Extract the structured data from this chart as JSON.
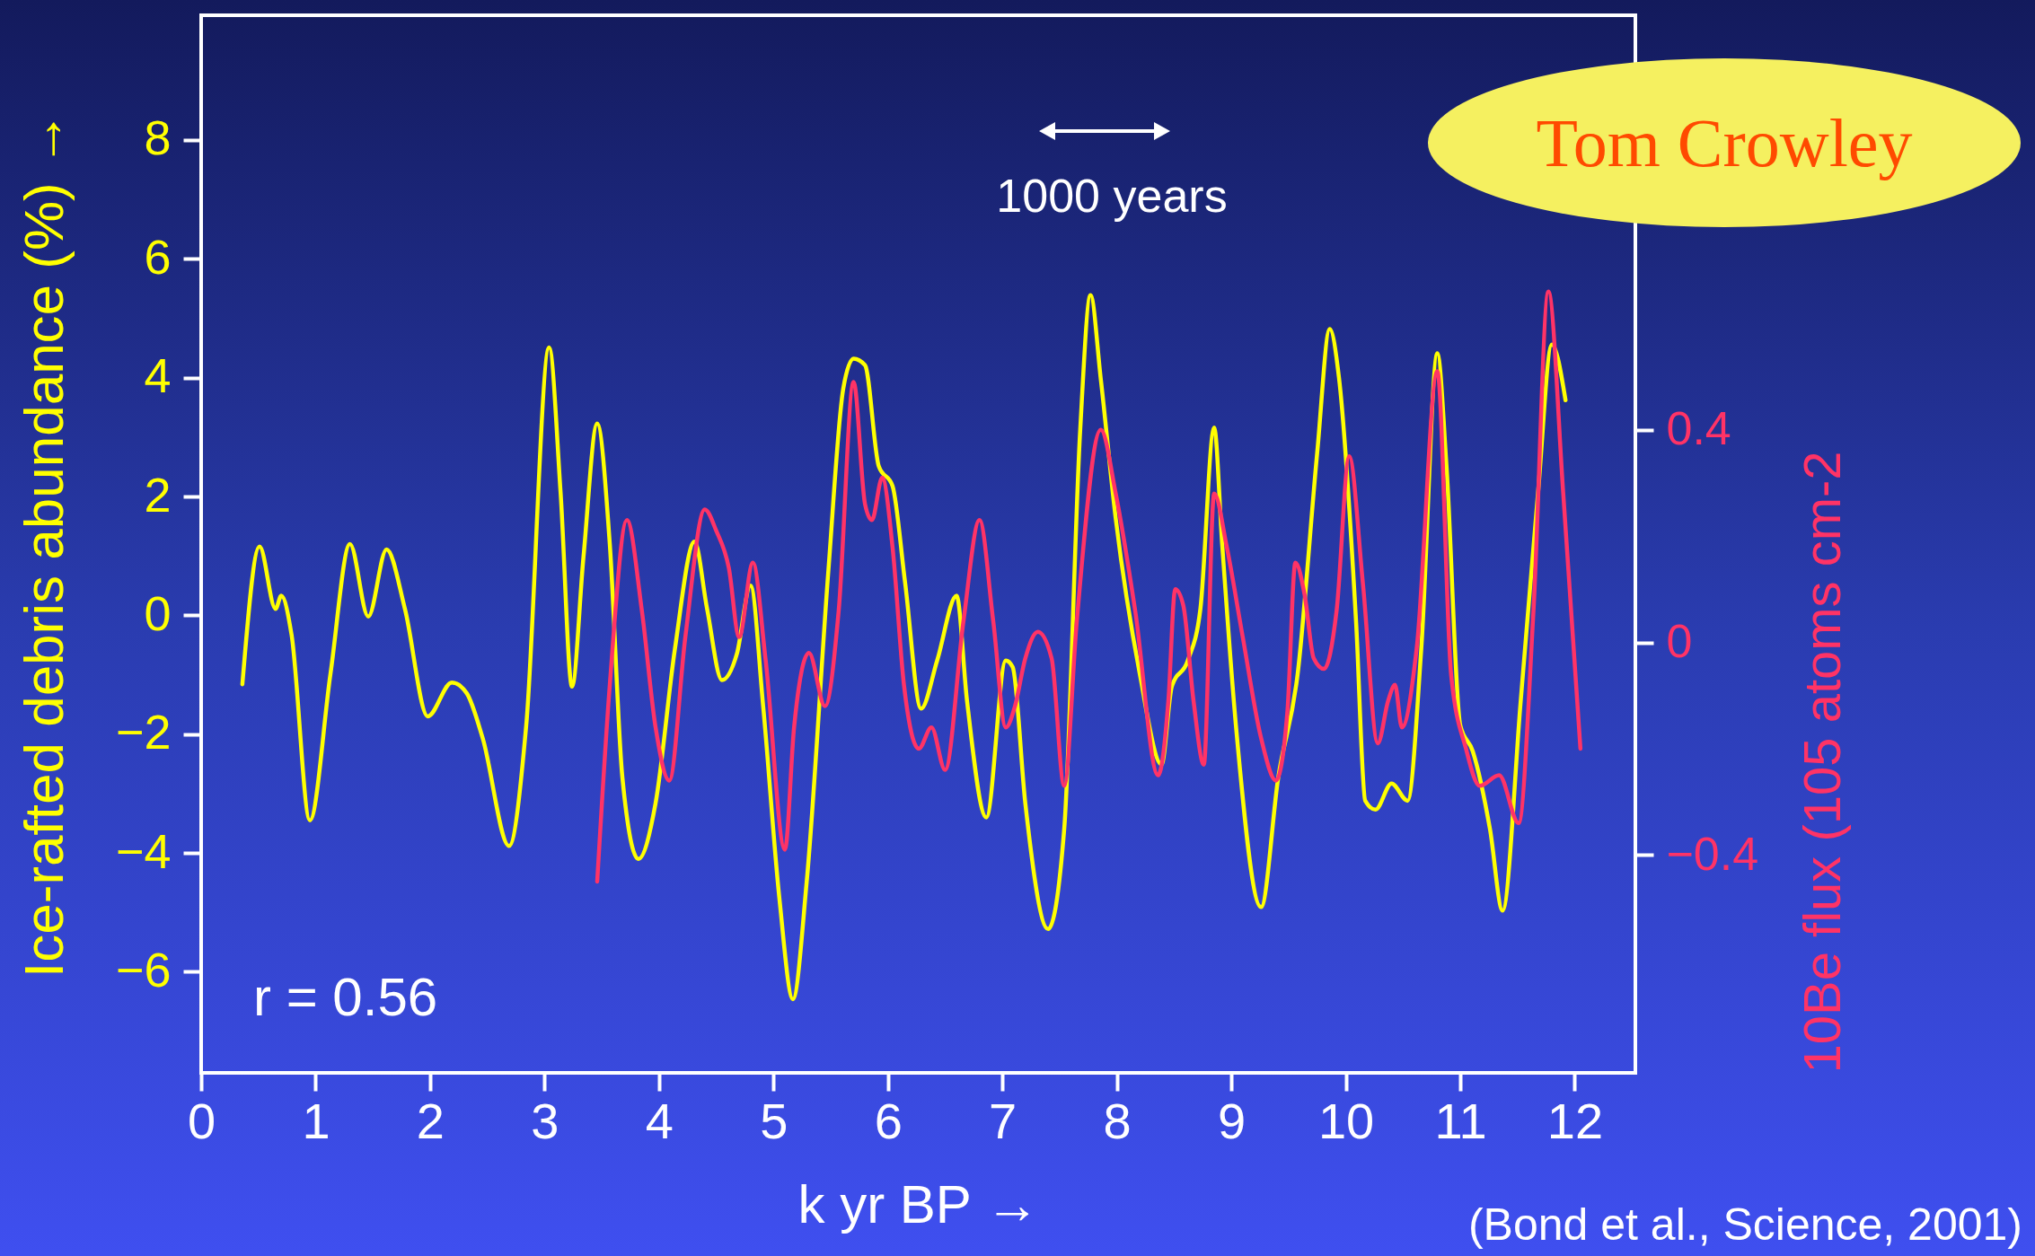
{
  "chart_data": {
    "type": "line",
    "xlabel": "k yr BP →",
    "ylabel": "Ice-rafted debris abundance (%) →",
    "y2label": "10Be flux (105 atoms cm-2",
    "xlim": [
      0,
      12.53
    ],
    "xticks": [
      0,
      1,
      2,
      3,
      4,
      5,
      6,
      7,
      8,
      9,
      10,
      11,
      12
    ],
    "ylim": [
      -7.7,
      10.1
    ],
    "yticks": [
      -6,
      -4,
      -2,
      0,
      2,
      4,
      6,
      8
    ],
    "y2lim": [
      -0.81,
      1.18
    ],
    "y2ticks": [
      -0.4,
      0,
      0.4
    ],
    "annotations": [
      "1000 years",
      "r = 0.56",
      "Tom Crowley",
      "(Bond et al., Science, 2001)"
    ],
    "series": [
      {
        "color": "#ffff00",
        "x": [
          0.36,
          0.51,
          0.65,
          0.7,
          0.79,
          0.95,
          1.13,
          1.3,
          1.46,
          1.62,
          1.78,
          1.98,
          2.19,
          2.32,
          2.46,
          2.69,
          2.84,
          3.04,
          3.14,
          3.24,
          3.34,
          3.46,
          3.57,
          3.68,
          3.82,
          3.97,
          4.14,
          4.31,
          4.42,
          4.55,
          4.68,
          4.8,
          4.91,
          5.05,
          5.17,
          5.29,
          5.48,
          5.61,
          5.7,
          5.8,
          5.92,
          6.04,
          6.15,
          6.29,
          6.43,
          6.6,
          6.69,
          6.86,
          7.03,
          7.09,
          7.2,
          7.4,
          7.54,
          7.68,
          7.77,
          7.86,
          7.99,
          8.2,
          8.39,
          8.48,
          8.62,
          8.73,
          8.85,
          8.92,
          9.04,
          9.26,
          9.41,
          9.58,
          9.75,
          9.86,
          9.94,
          10.09,
          10.17,
          10.26,
          10.4,
          10.54,
          10.66,
          10.8,
          10.88,
          11.0,
          11.11,
          11.26,
          11.37,
          11.53,
          11.68,
          11.8,
          11.92
        ],
        "values": [
          -1.16,
          1.16,
          0.11,
          0.33,
          -0.33,
          -3.45,
          -0.98,
          1.2,
          -0.02,
          1.11,
          0.11,
          -1.7,
          -1.13,
          -1.31,
          -2.07,
          -3.88,
          -1.85,
          4.51,
          2.07,
          -1.2,
          0.98,
          3.23,
          1.2,
          -2.73,
          -4.1,
          -3.16,
          -0.55,
          1.24,
          0.11,
          -1.09,
          -0.65,
          0.5,
          -1.53,
          -4.73,
          -6.46,
          -4.49,
          0.76,
          3.82,
          4.32,
          4.21,
          2.51,
          2.18,
          0.55,
          -1.57,
          -0.76,
          0.33,
          -1.42,
          -3.4,
          -0.76,
          -0.87,
          -3.16,
          -5.28,
          -3.6,
          3.13,
          5.39,
          3.97,
          1.63,
          -0.98,
          -2.51,
          -1.2,
          -0.76,
          0.11,
          3.16,
          1.2,
          -1.85,
          -4.91,
          -2.73,
          -0.98,
          2.73,
          4.82,
          4.01,
          -0.11,
          -3.12,
          -3.27,
          -2.83,
          -3.12,
          -0.55,
          4.41,
          2.51,
          -1.85,
          -2.29,
          -3.6,
          -4.97,
          -1.4,
          2.07,
          4.56,
          3.62
        ]
      },
      {
        "color": "#ff3366",
        "axis": "y2",
        "x": [
          3.46,
          3.57,
          3.72,
          3.85,
          3.97,
          4.09,
          4.23,
          4.4,
          4.5,
          4.61,
          4.7,
          4.82,
          4.93,
          5.1,
          5.18,
          5.31,
          5.45,
          5.57,
          5.7,
          5.8,
          5.86,
          5.95,
          6.04,
          6.14,
          6.27,
          6.38,
          6.5,
          6.66,
          6.8,
          6.92,
          7.03,
          7.11,
          7.2,
          7.31,
          7.43,
          7.54,
          7.65,
          7.86,
          7.99,
          8.16,
          8.36,
          8.45,
          8.51,
          8.58,
          8.67,
          8.76,
          8.85,
          8.96,
          9.1,
          9.26,
          9.39,
          9.49,
          9.56,
          9.64,
          9.72,
          9.81,
          9.92,
          10.03,
          10.15,
          10.28,
          10.37,
          10.43,
          10.49,
          10.62,
          10.8,
          10.92,
          11.05,
          11.17,
          11.34,
          11.51,
          11.64,
          11.77,
          11.9,
          12.05
        ],
        "values": [
          -0.45,
          -0.08,
          0.23,
          0.06,
          -0.16,
          -0.26,
          0.01,
          0.25,
          0.21,
          0.14,
          0.01,
          0.15,
          -0.03,
          -0.39,
          -0.16,
          -0.02,
          -0.12,
          0.06,
          0.49,
          0.26,
          0.23,
          0.31,
          0.18,
          -0.08,
          -0.2,
          -0.16,
          -0.24,
          0.04,
          0.23,
          0.04,
          -0.16,
          -0.12,
          -0.03,
          0.02,
          -0.03,
          -0.27,
          0.04,
          0.4,
          0.28,
          0.06,
          -0.25,
          -0.11,
          0.1,
          0.07,
          -0.11,
          -0.23,
          0.28,
          0.18,
          0.01,
          -0.18,
          -0.26,
          -0.13,
          0.15,
          0.09,
          -0.03,
          -0.05,
          0.06,
          0.35,
          0.11,
          -0.19,
          -0.11,
          -0.08,
          -0.16,
          -0.01,
          0.51,
          -0.06,
          -0.2,
          -0.27,
          -0.25,
          -0.34,
          0.06,
          0.66,
          0.28,
          -0.2
        ]
      }
    ]
  }
}
